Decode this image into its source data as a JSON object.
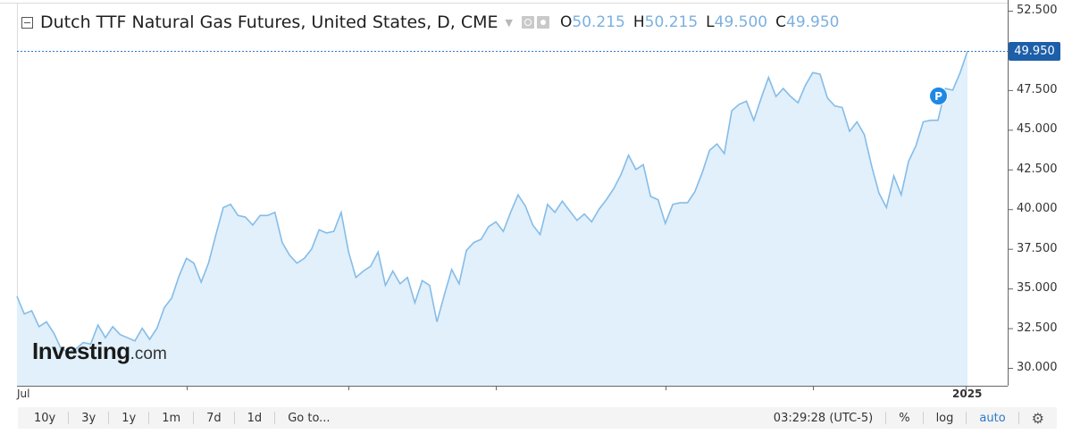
{
  "header": {
    "title": "Dutch TTF Natural Gas Futures, United States, D, CME",
    "ohlc": [
      {
        "key": "O",
        "value": "50.215"
      },
      {
        "key": "H",
        "value": "50.215"
      },
      {
        "key": "L",
        "value": "49.500"
      },
      {
        "key": "C",
        "value": "49.950"
      }
    ]
  },
  "last_price_badge": "49.950",
  "marker_label": "P",
  "logo": {
    "main": "Investing",
    "suffix": ".com"
  },
  "toolbar": {
    "ranges": [
      "10y",
      "3y",
      "1y",
      "1m",
      "7d",
      "1d"
    ],
    "goto": "Go to...",
    "time": "03:29:28 (UTC-5)",
    "percent": "%",
    "log": "log",
    "auto": "auto"
  },
  "colors": {
    "line": "#85bce8",
    "fill": "#e1f0fa",
    "badge": "#1d5fa8",
    "accent": "#2c7ac9"
  },
  "chart_data": {
    "type": "area",
    "y_axis_labels": [
      "52.500",
      "49.950",
      "47.500",
      "45.000",
      "42.500",
      "40.000",
      "37.500",
      "35.000",
      "32.500",
      "30.000"
    ],
    "x_axis_labels": [
      "Jul",
      "2025"
    ],
    "ylim": [
      29.0,
      53.0
    ],
    "grid": false,
    "values": [
      34.5,
      33.4,
      33.6,
      32.6,
      32.9,
      32.2,
      31.2,
      31.0,
      31.2,
      31.6,
      31.5,
      32.7,
      31.9,
      32.6,
      32.1,
      31.9,
      31.7,
      32.5,
      31.8,
      32.5,
      33.8,
      34.4,
      35.8,
      36.9,
      36.6,
      35.4,
      36.6,
      38.4,
      40.1,
      40.3,
      39.6,
      39.5,
      39.0,
      39.6,
      39.6,
      39.8,
      37.9,
      37.1,
      36.6,
      36.9,
      37.5,
      38.7,
      38.5,
      38.6,
      39.8,
      37.3,
      35.7,
      36.1,
      36.4,
      37.3,
      35.2,
      36.1,
      35.3,
      35.7,
      34.1,
      35.5,
      35.2,
      32.9,
      34.6,
      36.2,
      35.3,
      37.4,
      37.9,
      38.1,
      38.9,
      39.2,
      38.6,
      39.8,
      40.9,
      40.2,
      39.0,
      38.4,
      40.3,
      39.8,
      40.5,
      39.9,
      39.3,
      39.7,
      39.2,
      40.0,
      40.6,
      41.3,
      42.2,
      43.4,
      42.5,
      42.8,
      40.8,
      40.6,
      39.1,
      40.3,
      40.4,
      40.4,
      41.1,
      42.3,
      43.7,
      44.1,
      43.5,
      46.2,
      46.6,
      46.8,
      45.6,
      47.0,
      48.3,
      47.1,
      47.6,
      47.1,
      46.7,
      47.8,
      48.6,
      48.5,
      47.0,
      46.5,
      46.4,
      44.9,
      45.5,
      44.7,
      42.7,
      41.0,
      40.1,
      42.1,
      40.9,
      43.0,
      44.0,
      45.5,
      45.6,
      45.6,
      47.6,
      47.5,
      48.6,
      49.95
    ]
  }
}
